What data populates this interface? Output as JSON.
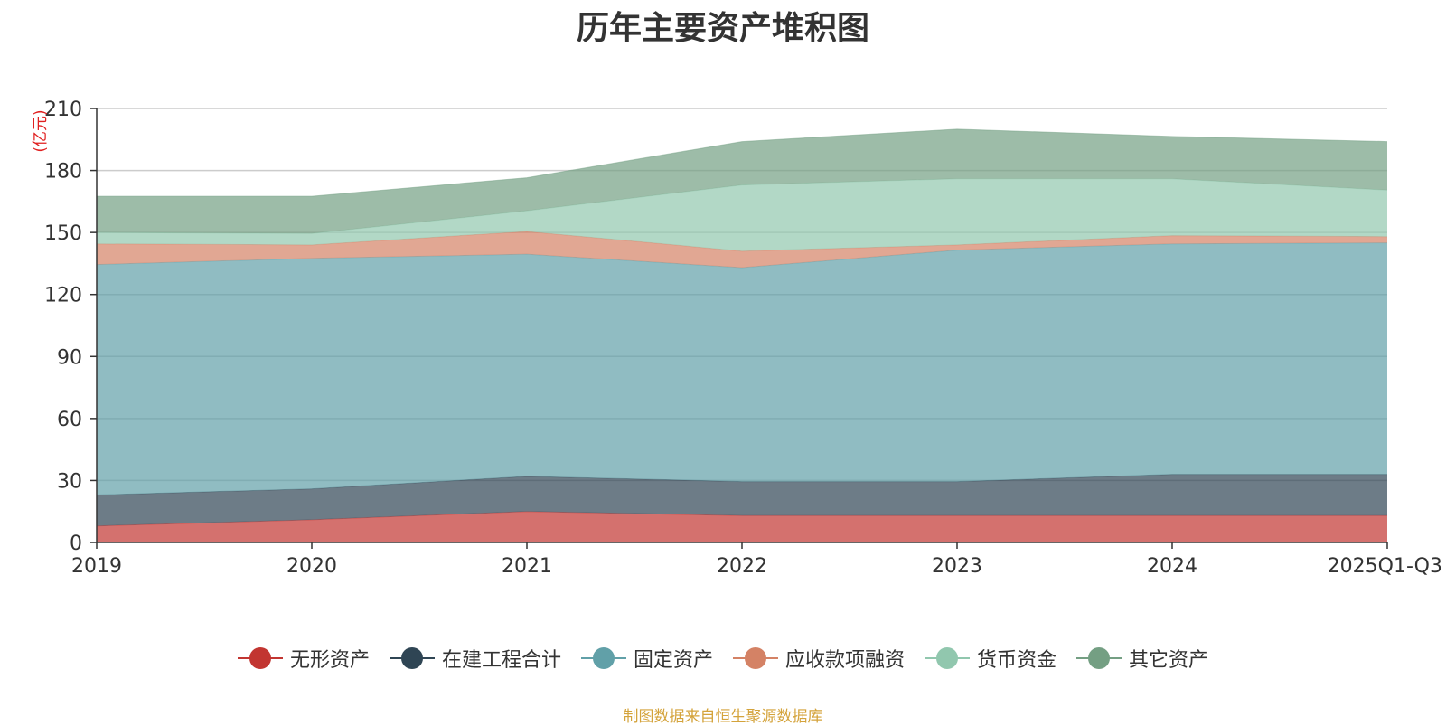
{
  "chart_data": {
    "type": "area",
    "stacked": true,
    "title": "历年主要资产堆积图",
    "ylabel": "(亿元)",
    "xlabel": "",
    "categories": [
      "2019",
      "2020",
      "2021",
      "2022",
      "2023",
      "2024",
      "2025Q1-Q3"
    ],
    "y_ticks": [
      "0",
      "30",
      "60",
      "90",
      "120",
      "150",
      "180",
      "210"
    ],
    "ylim": [
      0,
      210
    ],
    "series": [
      {
        "name": "无形资产",
        "color": "#c23531",
        "values": [
          8,
          11,
          15,
          13,
          13,
          13,
          13
        ]
      },
      {
        "name": "在建工程合计",
        "color": "#2f4554",
        "values": [
          15,
          15,
          17,
          16.5,
          16.5,
          20,
          20
        ]
      },
      {
        "name": "固定资产",
        "color": "#61a0a8",
        "values": [
          111.5,
          111.5,
          107.5,
          103.5,
          112,
          111.5,
          112
        ]
      },
      {
        "name": "应收款项融资",
        "color": "#d48265",
        "values": [
          10,
          6.5,
          11,
          8,
          2.5,
          4,
          3
        ]
      },
      {
        "name": "货币资金",
        "color": "#91c7ae",
        "values": [
          5.5,
          5.5,
          10,
          32,
          32,
          27.5,
          22.5
        ]
      },
      {
        "name": "其它资产",
        "color": "#749f83",
        "values": [
          17.5,
          18,
          16,
          21,
          24,
          20.5,
          23.5
        ]
      }
    ],
    "legend_position": "bottom",
    "grid": true
  },
  "source_note": "制图数据来自恒生聚源数据库"
}
